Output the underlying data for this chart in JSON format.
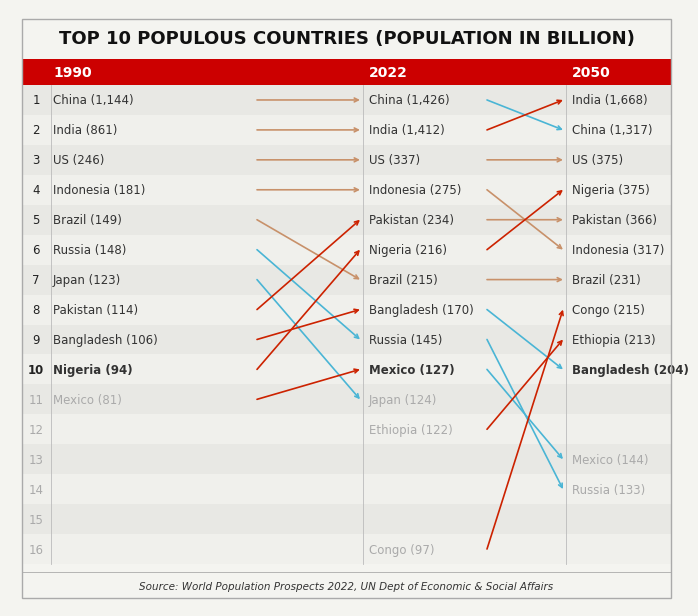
{
  "title": "TOP 10 POPULOUS COUNTRIES (POPULATION IN BILLION)",
  "source": "Source: World Population Prospects 2022, UN Dept of Economic & Social Affairs",
  "bg_color": "#f4f4f0",
  "header_bg": "#cc0000",
  "row_colors": [
    "#e8e8e4",
    "#f0f0ec"
  ],
  "data_1990": [
    {
      "rank": 1,
      "label": "China (1,144)",
      "active": true
    },
    {
      "rank": 2,
      "label": "India (861)",
      "active": true
    },
    {
      "rank": 3,
      "label": "US (246)",
      "active": true
    },
    {
      "rank": 4,
      "label": "Indonesia (181)",
      "active": true
    },
    {
      "rank": 5,
      "label": "Brazil (149)",
      "active": true
    },
    {
      "rank": 6,
      "label": "Russia (148)",
      "active": true
    },
    {
      "rank": 7,
      "label": "Japan (123)",
      "active": true
    },
    {
      "rank": 8,
      "label": "Pakistan (114)",
      "active": true
    },
    {
      "rank": 9,
      "label": "Bangladesh (106)",
      "active": true
    },
    {
      "rank": 10,
      "label": "Nigeria (94)",
      "active": true
    },
    {
      "rank": 11,
      "label": "Mexico (81)",
      "active": false
    }
  ],
  "data_2022": [
    {
      "rank": 1,
      "label": "China (1,426)",
      "active": true
    },
    {
      "rank": 2,
      "label": "India (1,412)",
      "active": true
    },
    {
      "rank": 3,
      "label": "US (337)",
      "active": true
    },
    {
      "rank": 4,
      "label": "Indonesia (275)",
      "active": true
    },
    {
      "rank": 5,
      "label": "Pakistan (234)",
      "active": true
    },
    {
      "rank": 6,
      "label": "Nigeria (216)",
      "active": true
    },
    {
      "rank": 7,
      "label": "Brazil (215)",
      "active": true
    },
    {
      "rank": 8,
      "label": "Bangladesh (170)",
      "active": true
    },
    {
      "rank": 9,
      "label": "Russia (145)",
      "active": true
    },
    {
      "rank": 10,
      "label": "Mexico (127)",
      "active": true
    },
    {
      "rank": 11,
      "label": "Japan (124)",
      "active": false
    },
    {
      "rank": 12,
      "label": "Ethiopia (122)",
      "active": false
    },
    {
      "rank": 16,
      "label": "Congo (97)",
      "active": false
    }
  ],
  "data_2050": [
    {
      "rank": 1,
      "label": "India (1,668)",
      "active": true
    },
    {
      "rank": 2,
      "label": "China (1,317)",
      "active": true
    },
    {
      "rank": 3,
      "label": "US (375)",
      "active": true
    },
    {
      "rank": 4,
      "label": "Nigeria (375)",
      "active": true
    },
    {
      "rank": 5,
      "label": "Pakistan (366)",
      "active": true
    },
    {
      "rank": 6,
      "label": "Indonesia (317)",
      "active": true
    },
    {
      "rank": 7,
      "label": "Brazil (231)",
      "active": true
    },
    {
      "rank": 8,
      "label": "Congo (215)",
      "active": true
    },
    {
      "rank": 9,
      "label": "Ethiopia (213)",
      "active": true
    },
    {
      "rank": 10,
      "label": "Bangladesh (204)",
      "active": true
    },
    {
      "rank": 13,
      "label": "Mexico (144)",
      "active": false
    },
    {
      "rank": 14,
      "label": "Russia (133)",
      "active": false
    }
  ],
  "arrows_1990_2022": [
    {
      "from_rank": 1,
      "to_rank": 1,
      "color": "#c8916a"
    },
    {
      "from_rank": 2,
      "to_rank": 2,
      "color": "#c8916a"
    },
    {
      "from_rank": 3,
      "to_rank": 3,
      "color": "#c8916a"
    },
    {
      "from_rank": 4,
      "to_rank": 4,
      "color": "#c8916a"
    },
    {
      "from_rank": 5,
      "to_rank": 7,
      "color": "#c8916a"
    },
    {
      "from_rank": 6,
      "to_rank": 9,
      "color": "#4ab5d5"
    },
    {
      "from_rank": 7,
      "to_rank": 11,
      "color": "#4ab5d5"
    },
    {
      "from_rank": 8,
      "to_rank": 5,
      "color": "#cc2200"
    },
    {
      "from_rank": 9,
      "to_rank": 8,
      "color": "#cc2200"
    },
    {
      "from_rank": 10,
      "to_rank": 6,
      "color": "#cc2200"
    },
    {
      "from_rank": 11,
      "to_rank": 10,
      "color": "#cc2200"
    }
  ],
  "arrows_2022_2050": [
    {
      "from_rank": 1,
      "to_rank": 2,
      "color": "#4ab5d5"
    },
    {
      "from_rank": 2,
      "to_rank": 1,
      "color": "#cc2200"
    },
    {
      "from_rank": 3,
      "to_rank": 3,
      "color": "#c8916a"
    },
    {
      "from_rank": 4,
      "to_rank": 6,
      "color": "#c8916a"
    },
    {
      "from_rank": 5,
      "to_rank": 5,
      "color": "#c8916a"
    },
    {
      "from_rank": 6,
      "to_rank": 4,
      "color": "#cc2200"
    },
    {
      "from_rank": 7,
      "to_rank": 7,
      "color": "#c8916a"
    },
    {
      "from_rank": 8,
      "to_rank": 10,
      "color": "#4ab5d5"
    },
    {
      "from_rank": 9,
      "to_rank": 14,
      "color": "#4ab5d5"
    },
    {
      "from_rank": 10,
      "to_rank": 13,
      "color": "#4ab5d5"
    },
    {
      "from_rank": 12,
      "to_rank": 9,
      "color": "#cc2200"
    },
    {
      "from_rank": 16,
      "to_rank": 8,
      "color": "#cc2200"
    }
  ],
  "num_rows": 16,
  "title_fontsize": 13,
  "header_fontsize": 10,
  "cell_fontsize": 8.5,
  "source_fontsize": 7.5
}
